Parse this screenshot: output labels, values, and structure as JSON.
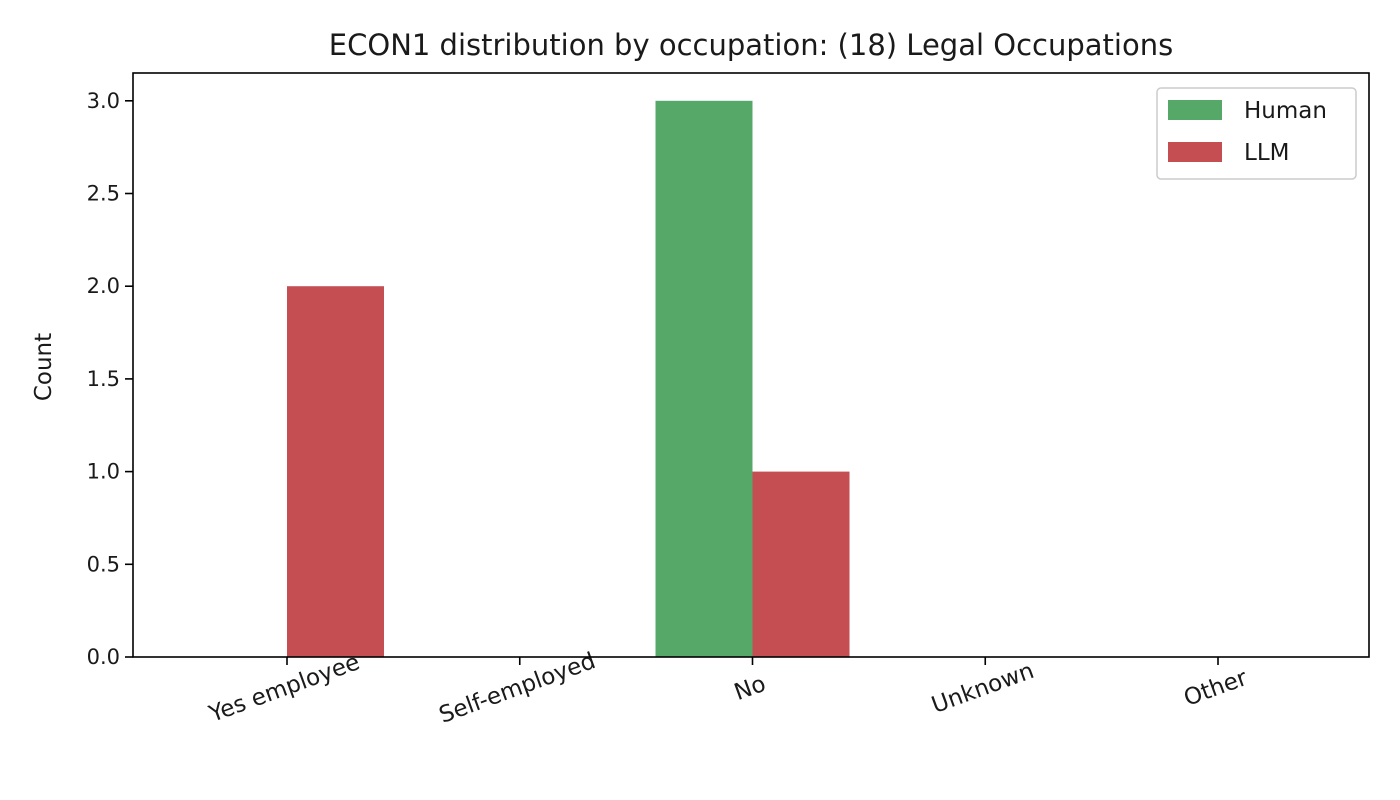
{
  "chart_data": {
    "type": "bar",
    "title": "ECON1 distribution by occupation: (18) Legal Occupations",
    "xlabel": "",
    "ylabel": "Count",
    "categories": [
      "Yes employee",
      "Self-employed",
      "No",
      "Unknown",
      "Other"
    ],
    "series": [
      {
        "name": "Human",
        "color": "#55a868",
        "values": [
          0,
          0,
          3,
          0,
          0
        ]
      },
      {
        "name": "LLM",
        "color": "#c44e52",
        "values": [
          2,
          0,
          1,
          0,
          0
        ]
      }
    ],
    "ylim": [
      0,
      3.15
    ],
    "yticks": [
      "0.0",
      "0.5",
      "1.0",
      "1.5",
      "2.0",
      "2.5",
      "3.0"
    ],
    "grid": false,
    "legend_position": "top-right"
  }
}
